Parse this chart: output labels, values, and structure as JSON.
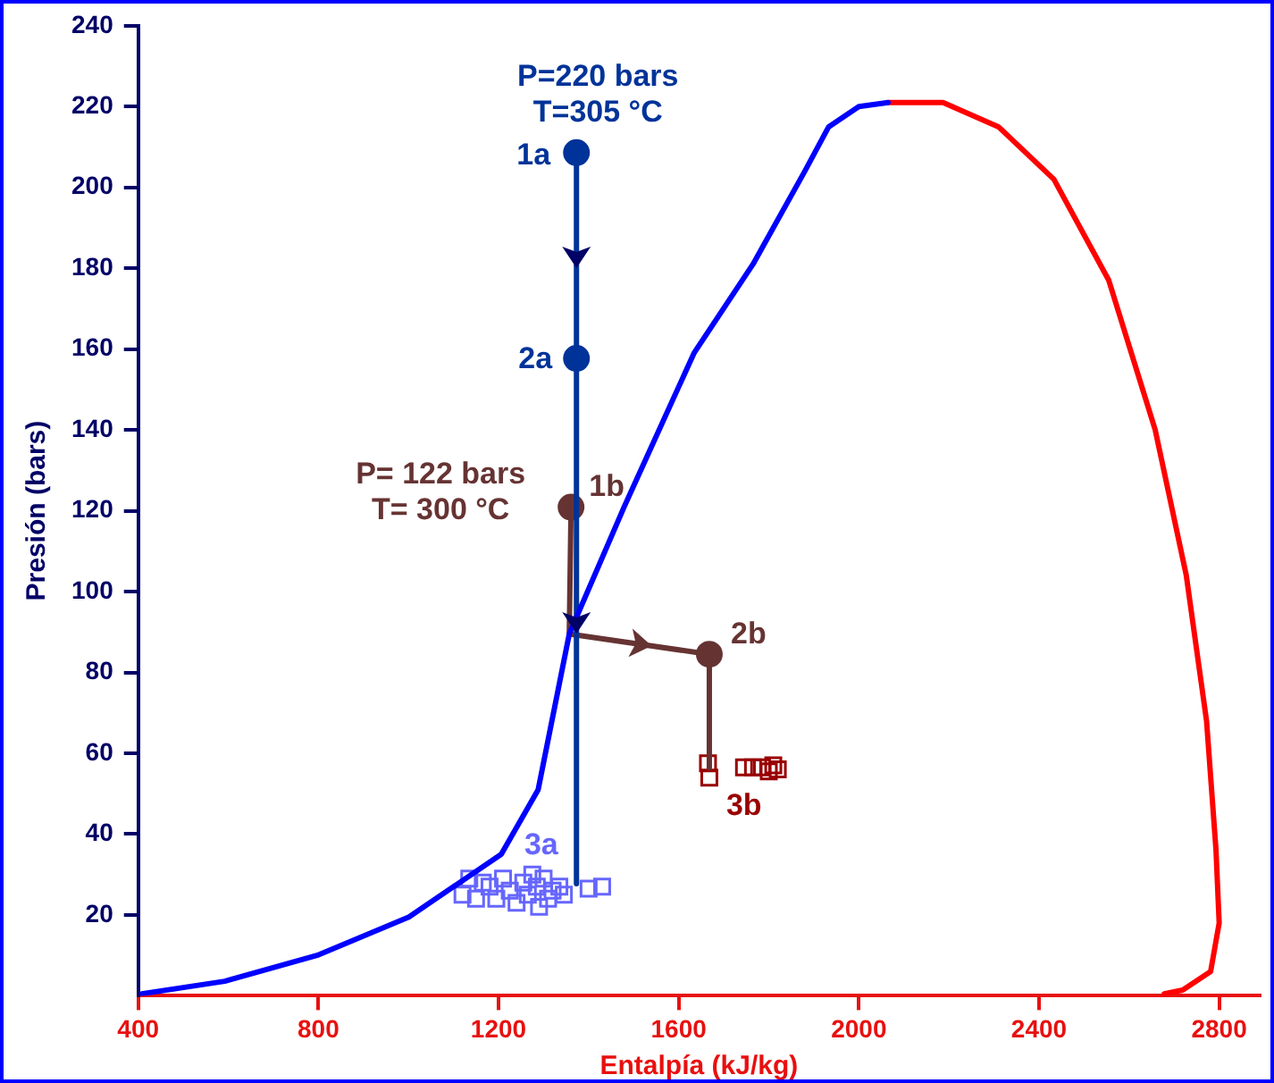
{
  "chart_data": {
    "type": "line",
    "xlabel": "Entalpía (kJ/kg)",
    "ylabel": "Presión (bars)",
    "xlim": [
      400,
      2890
    ],
    "ylim": [
      0,
      240
    ],
    "xticks": [
      400,
      800,
      1200,
      1600,
      2000,
      2400,
      2800
    ],
    "yticks": [
      20,
      40,
      60,
      80,
      100,
      120,
      140,
      160,
      180,
      200,
      220,
      240
    ],
    "grid": false,
    "legend": false,
    "series": [
      {
        "color": "#0000ff",
        "marker": "none",
        "x": [
          408,
          592,
          797,
          1001,
          1206,
          1288,
          1357,
          1479,
          1634,
          1765,
          1880,
          1933,
          2000,
          2065
        ],
        "values": [
          0.5,
          3.6,
          10,
          19.5,
          35,
          51,
          89.5,
          121,
          159,
          181,
          204,
          215,
          220,
          221
        ]
      },
      {
        "color": "#ff0000",
        "marker": "none",
        "x": [
          2065,
          2187,
          2310,
          2433,
          2555,
          2658,
          2727,
          2772,
          2793,
          2800,
          2781,
          2719,
          2678
        ],
        "values": [
          221,
          221,
          215,
          202,
          177,
          140,
          104,
          68,
          36,
          18,
          6,
          1.4,
          0.5
        ]
      },
      {
        "color": "#003399",
        "marker": "none",
        "x": [
          1373,
          1373,
          1373
        ],
        "values": [
          208.6,
          157.7,
          27.7
        ]
      },
      {
        "color": "#663333",
        "marker": "none",
        "x": [
          1361,
          1357,
          1668,
          1668
        ],
        "values": [
          120.9,
          89.5,
          84.5,
          56.4
        ]
      },
      {
        "type": "scatter",
        "color": "#003399",
        "marker": "circle",
        "x": [
          1373,
          1373
        ],
        "values": [
          208.6,
          157.7
        ]
      },
      {
        "type": "scatter",
        "color": "#663333",
        "marker": "circle",
        "x": [
          1361,
          1668
        ],
        "values": [
          120.9,
          84.5
        ]
      },
      {
        "type": "scatter",
        "color": "#6666ff",
        "marker": "square",
        "x": [
          1120,
          1135,
          1150,
          1165,
          1180,
          1195,
          1210,
          1225,
          1240,
          1255,
          1265,
          1275,
          1285,
          1290,
          1300,
          1310,
          1320,
          1335,
          1345,
          1400,
          1430
        ],
        "values": [
          25,
          29,
          24,
          28,
          27,
          24,
          29,
          26,
          23,
          28,
          25,
          30,
          27,
          22,
          29,
          24,
          26,
          27,
          25,
          26.5,
          27
        ]
      },
      {
        "type": "scatter",
        "color": "#990000",
        "marker": "square",
        "x": [
          1665,
          1668,
          1745,
          1765,
          1785,
          1800,
          1810,
          1820
        ],
        "values": [
          57.5,
          54,
          56.5,
          56.5,
          56.5,
          55.5,
          57,
          56
        ]
      }
    ],
    "annotations": [
      {
        "text": "P=220 bars\nT=305 °C",
        "x": 1373,
        "y": 208.6
      },
      {
        "text": "1a",
        "x": 1373,
        "y": 208.6
      },
      {
        "text": "2a",
        "x": 1373,
        "y": 157.7
      },
      {
        "text": "P= 122 bars\nT= 300 °C",
        "x": 1361,
        "y": 120.9
      },
      {
        "text": "1b",
        "x": 1361,
        "y": 120.9
      },
      {
        "text": "2b",
        "x": 1668,
        "y": 84.5
      },
      {
        "text": "3a",
        "x": 1275,
        "y": 30
      },
      {
        "text": "3b",
        "x": 1745,
        "y": 56.5
      }
    ]
  }
}
